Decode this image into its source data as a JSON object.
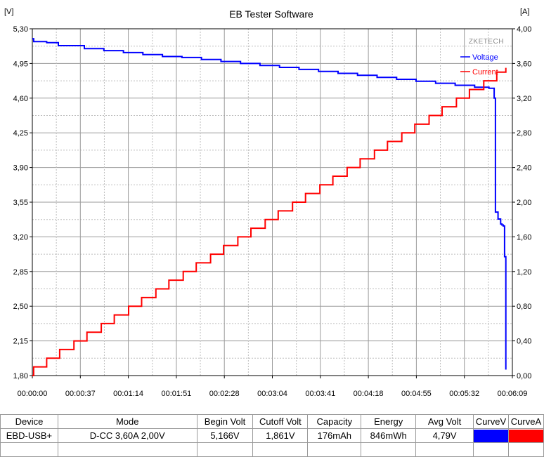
{
  "chart_data": {
    "type": "line",
    "title": "EB Tester Software",
    "brand": "ZKETECH",
    "left_unit": "[V]",
    "right_unit": "[A]",
    "ylim_left": [
      1.8,
      5.3
    ],
    "ylim_right": [
      0.0,
      4.0
    ],
    "y_ticks_left": [
      "5,30",
      "4,95",
      "4,60",
      "4,25",
      "3,90",
      "3,55",
      "3,20",
      "2,85",
      "2,50",
      "2,15",
      "1,80"
    ],
    "y_ticks_right": [
      "4,00",
      "3,60",
      "3,20",
      "2,80",
      "2,40",
      "2,00",
      "1,60",
      "1,20",
      "0,80",
      "0,40",
      "0,00"
    ],
    "x_ticks": [
      "00:00:00",
      "00:00:37",
      "00:01:14",
      "00:01:51",
      "00:02:28",
      "00:03:04",
      "00:03:41",
      "00:04:18",
      "00:04:55",
      "00:05:32",
      "00:06:09"
    ],
    "xlim_seconds": [
      0,
      369
    ],
    "grid": true,
    "legend_position": "top-right",
    "series": [
      {
        "name": "Voltage",
        "axis": "left",
        "color": "#0000ff",
        "points": [
          [
            0,
            5.2
          ],
          [
            1,
            5.17
          ],
          [
            11,
            5.16
          ],
          [
            20,
            5.13
          ],
          [
            40,
            5.1
          ],
          [
            55,
            5.08
          ],
          [
            70,
            5.06
          ],
          [
            85,
            5.04
          ],
          [
            100,
            5.02
          ],
          [
            115,
            5.01
          ],
          [
            130,
            4.99
          ],
          [
            145,
            4.97
          ],
          [
            160,
            4.95
          ],
          [
            175,
            4.93
          ],
          [
            190,
            4.91
          ],
          [
            205,
            4.89
          ],
          [
            220,
            4.87
          ],
          [
            235,
            4.85
          ],
          [
            250,
            4.83
          ],
          [
            265,
            4.81
          ],
          [
            280,
            4.79
          ],
          [
            295,
            4.77
          ],
          [
            310,
            4.75
          ],
          [
            325,
            4.73
          ],
          [
            340,
            4.71
          ],
          [
            351,
            4.7
          ],
          [
            355,
            4.6
          ],
          [
            356,
            3.45
          ],
          [
            358,
            3.38
          ],
          [
            360,
            3.33
          ],
          [
            361,
            3.32
          ],
          [
            362,
            3.31
          ],
          [
            363,
            3.0
          ],
          [
            364,
            1.86
          ]
        ]
      },
      {
        "name": "Current",
        "axis": "right",
        "color": "#ff0000",
        "points": [
          [
            0,
            0.0
          ],
          [
            1,
            0.1
          ],
          [
            11,
            0.1
          ],
          [
            11,
            0.2
          ],
          [
            21,
            0.2
          ],
          [
            21,
            0.3
          ],
          [
            32,
            0.3
          ],
          [
            32,
            0.4
          ],
          [
            42,
            0.4
          ],
          [
            42,
            0.5
          ],
          [
            53,
            0.5
          ],
          [
            53,
            0.6
          ],
          [
            63,
            0.6
          ],
          [
            63,
            0.7
          ],
          [
            74,
            0.7
          ],
          [
            74,
            0.8
          ],
          [
            84,
            0.8
          ],
          [
            84,
            0.9
          ],
          [
            95,
            0.9
          ],
          [
            95,
            1.0
          ],
          [
            105,
            1.0
          ],
          [
            105,
            1.1
          ],
          [
            116,
            1.1
          ],
          [
            116,
            1.2
          ],
          [
            126,
            1.2
          ],
          [
            126,
            1.3
          ],
          [
            137,
            1.3
          ],
          [
            137,
            1.4
          ],
          [
            147,
            1.4
          ],
          [
            147,
            1.5
          ],
          [
            158,
            1.5
          ],
          [
            158,
            1.6
          ],
          [
            168,
            1.6
          ],
          [
            168,
            1.7
          ],
          [
            179,
            1.7
          ],
          [
            179,
            1.8
          ],
          [
            189,
            1.8
          ],
          [
            189,
            1.9
          ],
          [
            200,
            1.9
          ],
          [
            200,
            2.0
          ],
          [
            210,
            2.0
          ],
          [
            210,
            2.1
          ],
          [
            221,
            2.1
          ],
          [
            221,
            2.2
          ],
          [
            231,
            2.2
          ],
          [
            231,
            2.3
          ],
          [
            242,
            2.3
          ],
          [
            242,
            2.4
          ],
          [
            252,
            2.4
          ],
          [
            252,
            2.5
          ],
          [
            263,
            2.5
          ],
          [
            263,
            2.6
          ],
          [
            273,
            2.6
          ],
          [
            273,
            2.7
          ],
          [
            284,
            2.7
          ],
          [
            284,
            2.8
          ],
          [
            294,
            2.8
          ],
          [
            294,
            2.9
          ],
          [
            305,
            2.9
          ],
          [
            305,
            3.0
          ],
          [
            315,
            3.0
          ],
          [
            315,
            3.1
          ],
          [
            326,
            3.1
          ],
          [
            326,
            3.2
          ],
          [
            336,
            3.2
          ],
          [
            336,
            3.3
          ],
          [
            347,
            3.3
          ],
          [
            347,
            3.4
          ],
          [
            357,
            3.4
          ],
          [
            357,
            3.5
          ],
          [
            364,
            3.5
          ],
          [
            364,
            3.55
          ]
        ]
      }
    ]
  },
  "summary": {
    "headers": [
      "Device",
      "Mode",
      "Begin Volt",
      "Cutoff Volt",
      "Capacity",
      "Energy",
      "Avg Volt",
      "CurveV",
      "CurveA"
    ],
    "row": [
      "EBD-USB+",
      "D-CC  3,60A  2,00V",
      "5,166V",
      "1,861V",
      "176mAh",
      "846mWh",
      "4,79V"
    ],
    "curve_colors": [
      "#0000ff",
      "#ff0000"
    ]
  }
}
